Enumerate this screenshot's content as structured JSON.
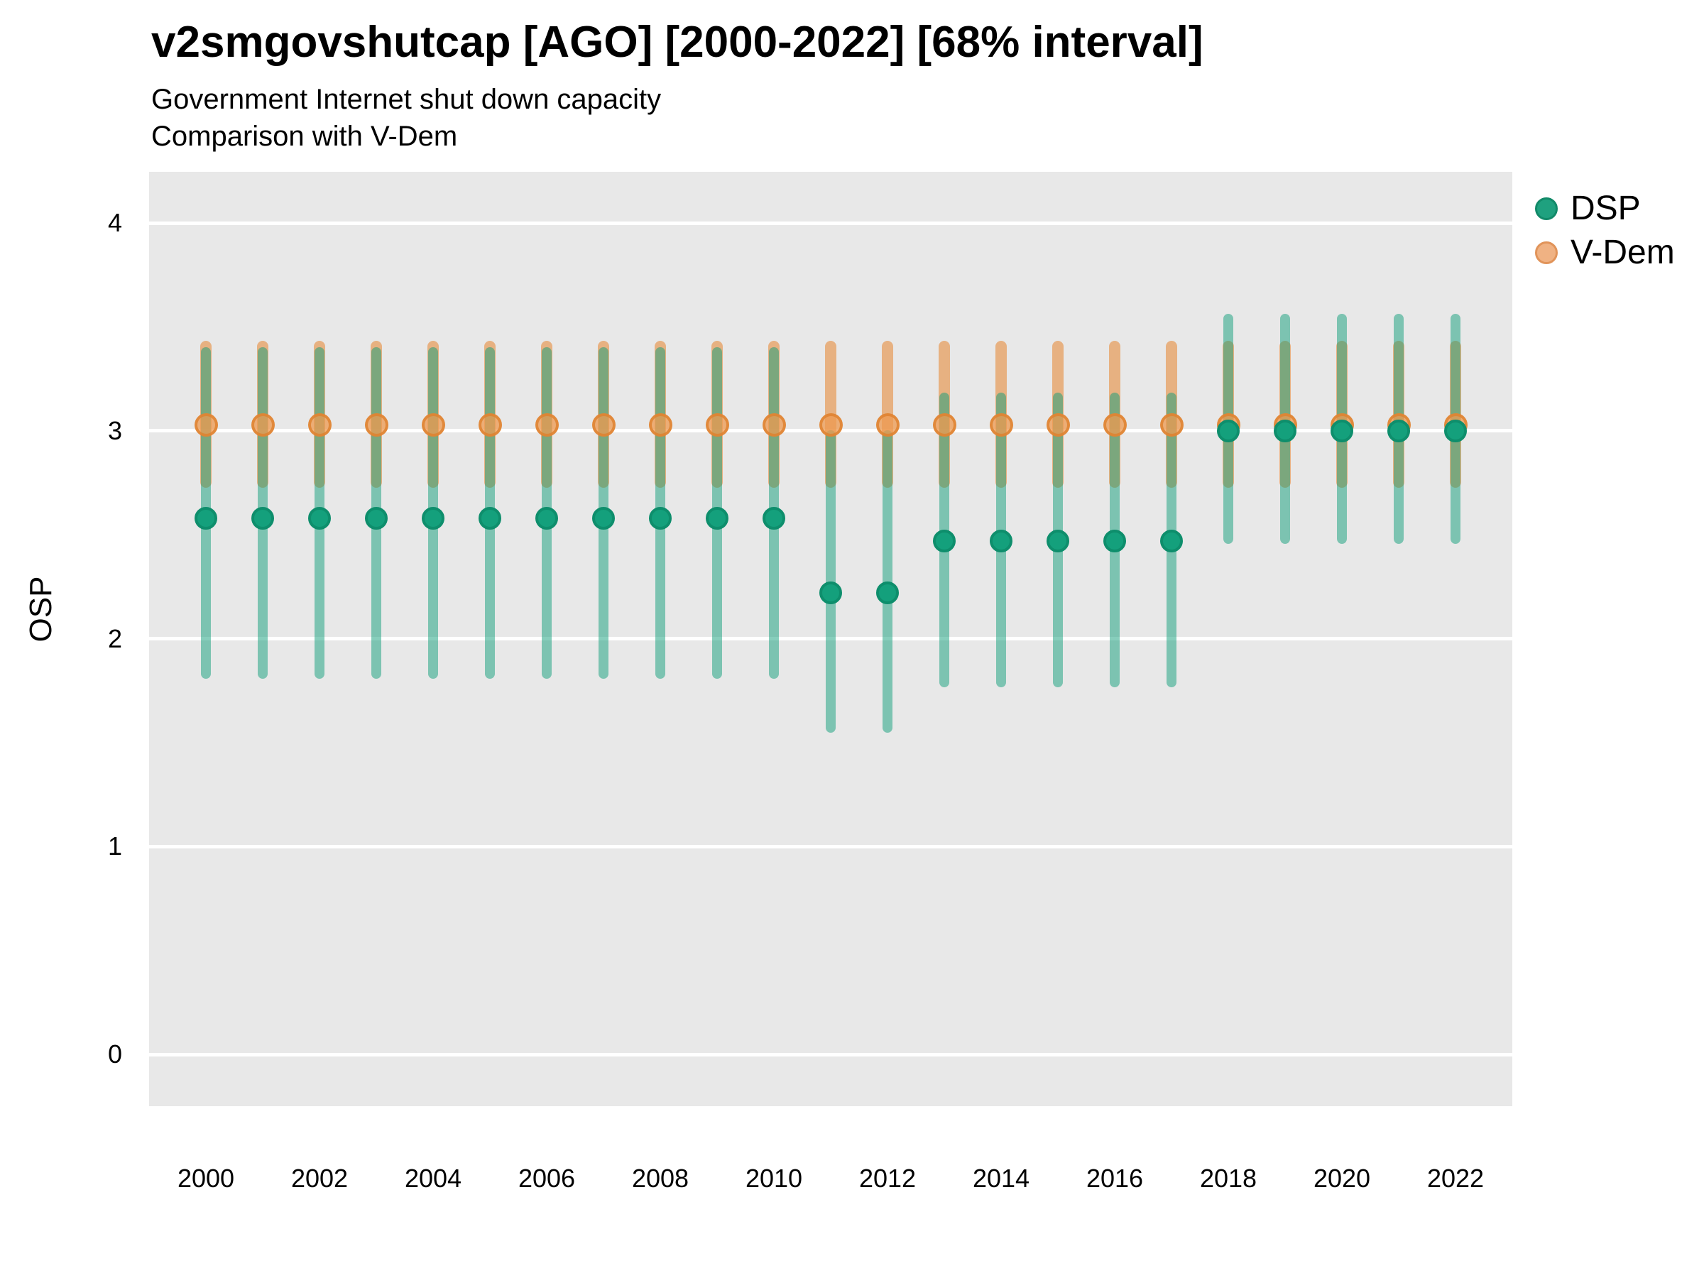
{
  "title": "v2smgovshutcap [AGO] [2000-2022] [68% interval]",
  "subtitle1": "Government Internet shut down capacity",
  "subtitle2": "Comparison with V-Dem",
  "y_axis_label": "OSP",
  "legend": {
    "entries": [
      {
        "label": "DSP",
        "color": "#1fa17f",
        "border": "#128a69"
      },
      {
        "label": "V-Dem",
        "color": "#f0b283",
        "border": "#e1945a"
      }
    ]
  },
  "colors": {
    "panel_background": "#e8e8e8",
    "gridline": "#ffffff",
    "dsp_point_fill": "#14a07c",
    "dsp_point_border": "#0e8e6c",
    "dsp_bar": "rgba(16,158,122,0.5)",
    "vdem_point_fill": "rgba(238,154,80,0.75)",
    "vdem_point_border": "rgba(222,130,48,0.85)",
    "vdem_bar": "rgba(230,140,60,0.6)"
  },
  "chart_data": {
    "type": "scatter",
    "title": "v2smgovshutcap [AGO] [2000-2022] [68% interval]",
    "subtitle": [
      "Government Internet shut down capacity",
      "Comparison with V-Dem"
    ],
    "xlabel": "",
    "ylabel": "OSP",
    "ylim": [
      -0.25,
      4.25
    ],
    "yticks": [
      0,
      1,
      2,
      3,
      4
    ],
    "xticks": [
      2000,
      2002,
      2004,
      2006,
      2008,
      2010,
      2012,
      2014,
      2016,
      2018,
      2020,
      2022
    ],
    "grid": true,
    "legend_position": "right",
    "interval": "68%",
    "x": [
      2000,
      2001,
      2002,
      2003,
      2004,
      2005,
      2006,
      2007,
      2008,
      2009,
      2010,
      2011,
      2012,
      2013,
      2014,
      2015,
      2016,
      2017,
      2018,
      2019,
      2020,
      2021,
      2022
    ],
    "series": [
      {
        "name": "DSP",
        "est": [
          2.58,
          2.58,
          2.58,
          2.58,
          2.58,
          2.58,
          2.58,
          2.58,
          2.58,
          2.58,
          2.58,
          2.22,
          2.22,
          2.47,
          2.47,
          2.47,
          2.47,
          2.47,
          3.0,
          3.0,
          3.0,
          3.0,
          3.0
        ],
        "lo": [
          1.83,
          1.83,
          1.83,
          1.83,
          1.83,
          1.83,
          1.83,
          1.83,
          1.83,
          1.83,
          1.83,
          1.57,
          1.57,
          1.79,
          1.79,
          1.79,
          1.79,
          1.79,
          2.48,
          2.48,
          2.48,
          2.48,
          2.48
        ],
        "hi": [
          3.38,
          3.38,
          3.38,
          3.38,
          3.38,
          3.38,
          3.38,
          3.38,
          3.38,
          3.38,
          3.38,
          2.98,
          2.98,
          3.16,
          3.16,
          3.16,
          3.16,
          3.16,
          3.54,
          3.54,
          3.54,
          3.54,
          3.54
        ]
      },
      {
        "name": "V-Dem",
        "est": [
          3.03,
          3.03,
          3.03,
          3.03,
          3.03,
          3.03,
          3.03,
          3.03,
          3.03,
          3.03,
          3.03,
          3.03,
          3.03,
          3.03,
          3.03,
          3.03,
          3.03,
          3.03,
          3.03,
          3.03,
          3.03,
          3.03,
          3.03
        ],
        "lo": [
          2.75,
          2.75,
          2.75,
          2.75,
          2.75,
          2.75,
          2.75,
          2.75,
          2.75,
          2.75,
          2.75,
          2.75,
          2.75,
          2.75,
          2.75,
          2.75,
          2.75,
          2.75,
          2.75,
          2.75,
          2.75,
          2.75,
          2.75
        ],
        "hi": [
          3.41,
          3.41,
          3.41,
          3.41,
          3.41,
          3.41,
          3.41,
          3.41,
          3.41,
          3.41,
          3.41,
          3.41,
          3.41,
          3.41,
          3.41,
          3.41,
          3.41,
          3.41,
          3.41,
          3.41,
          3.41,
          3.41,
          3.41
        ]
      }
    ]
  }
}
